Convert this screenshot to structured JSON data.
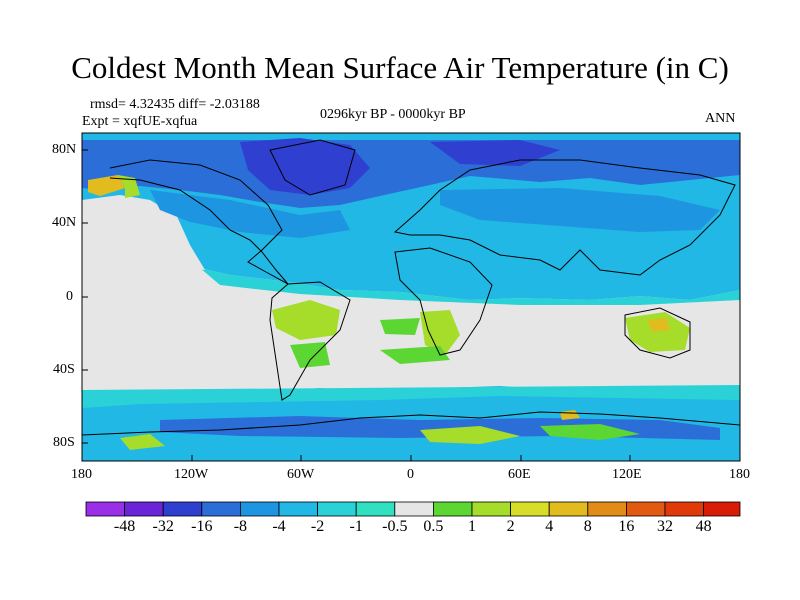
{
  "title": "Coldest Month Mean Surface Air Temperature (in C)",
  "stats": "rmsd= 4.32435 diff= -2.03188",
  "experiment": "Expt = xqfUE-xqfua",
  "time_range": "0296kyr BP - 0000kyr BP",
  "season": "ANN",
  "lat_labels": [
    "80N",
    "40N",
    "0",
    "40S",
    "80S"
  ],
  "lon_labels": [
    "180",
    "120W",
    "60W",
    "0",
    "60E",
    "120E",
    "180"
  ],
  "colorbar": {
    "labels": [
      "-48",
      "-32",
      "-16",
      "-8",
      "-4",
      "-2",
      "-1",
      "-0.5",
      "0.5",
      "1",
      "2",
      "4",
      "8",
      "16",
      "32",
      "48"
    ],
    "colors": [
      "#9a2fe8",
      "#6a25d8",
      "#2f3fd0",
      "#2c6ed8",
      "#1e95e0",
      "#22b8e6",
      "#2ad2d8",
      "#30e0c0",
      "#e6e6e6",
      "#5cd632",
      "#a6dc2a",
      "#d8de28",
      "#e2bc1e",
      "#e08c16",
      "#e25a12",
      "#e03a0a",
      "#d81c08"
    ]
  }
}
